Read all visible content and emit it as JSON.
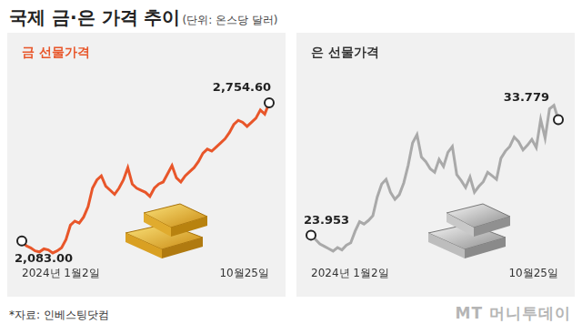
{
  "title": "국제 금·은 가격 추이",
  "unit": "(단위: 온스당 달러)",
  "source": "*자료: 인베스팅닷컴",
  "logo": "MT 머니투데이",
  "chart_data": [
    {
      "type": "line",
      "title": "금 선물가격",
      "color": "#e8562a",
      "grid": false,
      "tick_labels": "x",
      "data_labels": true,
      "categories": [
        "2024년 1월2일",
        null,
        null,
        null,
        null,
        null,
        null,
        null,
        null,
        null,
        null,
        null,
        null,
        null,
        null,
        null,
        null,
        null,
        null,
        null,
        null,
        null,
        null,
        null,
        null,
        null,
        null,
        null,
        null,
        null,
        null,
        null,
        null,
        null,
        null,
        null,
        null,
        null,
        null,
        null,
        null,
        null,
        null,
        null,
        null,
        null,
        null,
        null,
        null,
        null,
        null,
        null,
        null,
        null,
        null,
        null,
        "10월25일"
      ],
      "values": [
        2083.0,
        2060,
        2050,
        2035,
        2030,
        2045,
        2040,
        2025,
        2035,
        2050,
        2090,
        2160,
        2180,
        2170,
        2200,
        2250,
        2340,
        2380,
        2400,
        2350,
        2330,
        2310,
        2340,
        2380,
        2440,
        2360,
        2340,
        2330,
        2320,
        2300,
        2340,
        2360,
        2370,
        2410,
        2450,
        2390,
        2370,
        2400,
        2420,
        2440,
        2470,
        2510,
        2530,
        2520,
        2540,
        2560,
        2580,
        2610,
        2650,
        2670,
        2660,
        2640,
        2660,
        2680,
        2720,
        2700,
        2754.6
      ],
      "value_labels": [
        "2,083.00",
        null,
        null,
        null,
        null,
        null,
        null,
        null,
        null,
        null,
        null,
        null,
        null,
        null,
        null,
        null,
        null,
        null,
        null,
        null,
        null,
        null,
        null,
        null,
        null,
        null,
        null,
        null,
        null,
        null,
        null,
        null,
        null,
        null,
        null,
        null,
        null,
        null,
        null,
        null,
        null,
        null,
        null,
        null,
        null,
        null,
        null,
        null,
        null,
        null,
        null,
        null,
        null,
        null,
        null,
        null,
        "2,754.60"
      ]
    },
    {
      "type": "line",
      "title": "은 선물가격",
      "color": "#a9a9a9",
      "grid": false,
      "tick_labels": "x",
      "data_labels": true,
      "categories": [
        "2024년 1월2일",
        null,
        null,
        null,
        null,
        null,
        null,
        null,
        null,
        null,
        null,
        null,
        null,
        null,
        null,
        null,
        null,
        null,
        null,
        null,
        null,
        null,
        null,
        null,
        null,
        null,
        null,
        null,
        null,
        null,
        null,
        null,
        null,
        null,
        null,
        null,
        null,
        null,
        null,
        null,
        null,
        null,
        null,
        null,
        null,
        null,
        null,
        null,
        null,
        null,
        null,
        null,
        null,
        null,
        null,
        null,
        "10월25일"
      ],
      "values": [
        23.953,
        23.6,
        23.2,
        23.0,
        22.8,
        22.6,
        22.9,
        22.7,
        23.1,
        23.3,
        24.3,
        25.1,
        24.9,
        25.2,
        25.6,
        27.2,
        28.3,
        28.7,
        27.6,
        27.0,
        27.4,
        28.4,
        29.9,
        31.8,
        32.5,
        30.6,
        30.2,
        29.6,
        29.3,
        30.4,
        29.8,
        31.0,
        31.5,
        29.1,
        28.6,
        28.0,
        28.9,
        27.6,
        28.1,
        28.5,
        29.3,
        29.0,
        28.7,
        30.5,
        31.1,
        31.5,
        32.3,
        31.9,
        31.2,
        31.6,
        32.1,
        31.4,
        33.8,
        32.2,
        34.7,
        35.0,
        33.779
      ],
      "value_labels": [
        "23.953",
        null,
        null,
        null,
        null,
        null,
        null,
        null,
        null,
        null,
        null,
        null,
        null,
        null,
        null,
        null,
        null,
        null,
        null,
        null,
        null,
        null,
        null,
        null,
        null,
        null,
        null,
        null,
        null,
        null,
        null,
        null,
        null,
        null,
        null,
        null,
        null,
        null,
        null,
        null,
        null,
        null,
        null,
        null,
        null,
        null,
        null,
        null,
        null,
        null,
        null,
        null,
        null,
        null,
        null,
        null,
        "33.779"
      ]
    }
  ]
}
